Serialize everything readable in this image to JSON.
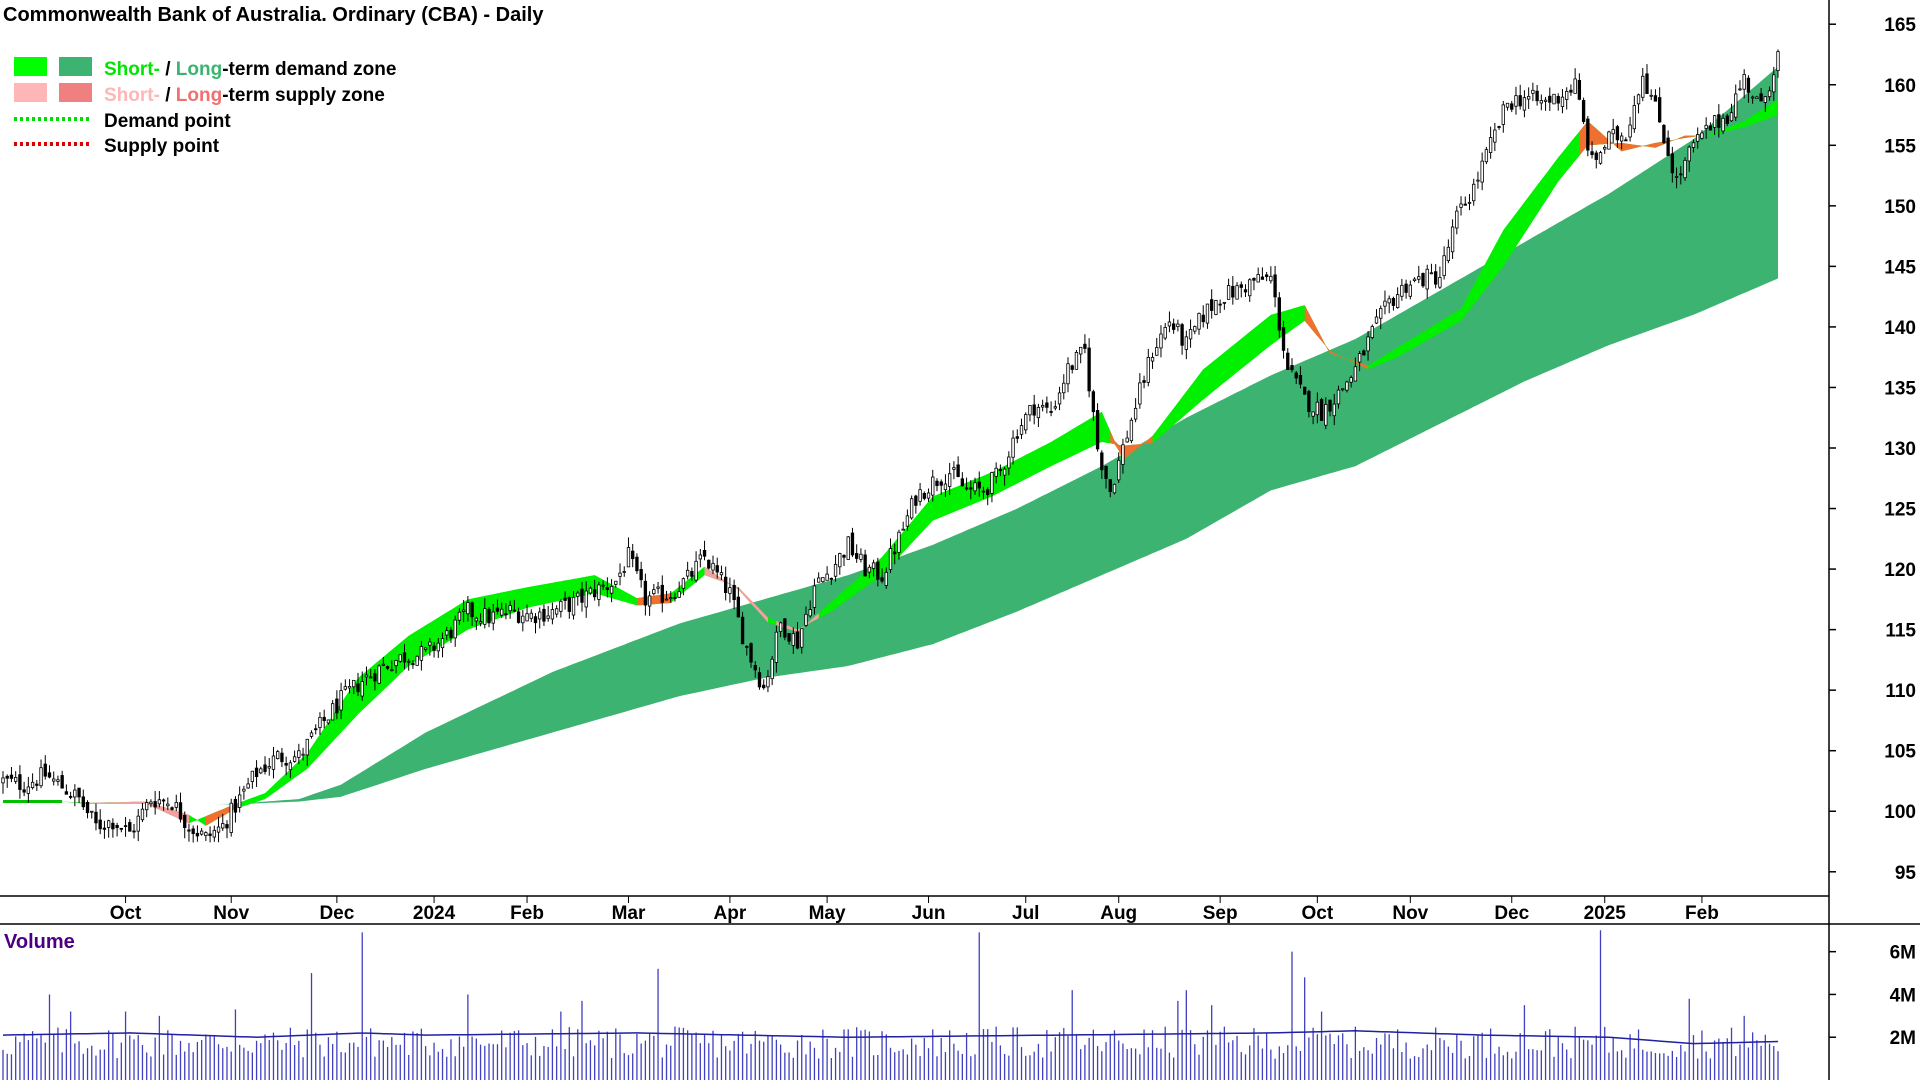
{
  "chart_data": {
    "type": "candlestick",
    "title": "Commonwealth Bank of Australia. Ordinary (CBA) - Daily",
    "legend": {
      "placement": "top-left",
      "items": [
        {
          "prefix": "Short-",
          "sep": " / ",
          "middle": "Long",
          "suffix": "-term demand zone",
          "colors": [
            "#00ff00",
            "#3cb371"
          ],
          "prefix_color": "#00e600",
          "middle_color": "#3cb371"
        },
        {
          "prefix": "Short-",
          "sep": " / ",
          "middle": "Long",
          "suffix": "-term supply zone",
          "colors": [
            "#ffb6b6",
            "#f08080"
          ],
          "prefix_color": "#ffb6b6",
          "middle_color": "#f07070"
        },
        {
          "label": "Demand point",
          "color": "#00dd00",
          "style": "dotted"
        },
        {
          "label": "Supply point",
          "color": "#dd0000",
          "style": "dotted"
        }
      ]
    },
    "price_axis": {
      "ylim": [
        93,
        167
      ],
      "ticks": [
        95,
        100,
        105,
        110,
        115,
        120,
        125,
        130,
        135,
        140,
        145,
        150,
        155,
        160,
        165
      ],
      "position": "right"
    },
    "x_axis": {
      "labels": [
        "Oct",
        "Nov",
        "Dec",
        "2024",
        "Feb",
        "Mar",
        "Apr",
        "May",
        "Jun",
        "Jul",
        "Aug",
        "Sep",
        "Oct",
        "Nov",
        "Dec",
        "2025",
        "Feb"
      ],
      "label_days": [
        29,
        54,
        79,
        102,
        124,
        148,
        172,
        195,
        219,
        242,
        264,
        288,
        311,
        333,
        357,
        379,
        402
      ]
    },
    "short_zone": [
      [
        0,
        100.8,
        100.8
      ],
      [
        14,
        100.8,
        100.8
      ],
      [
        20,
        100.7,
        100.6
      ],
      [
        34,
        100.8,
        100.6
      ],
      [
        44,
        99.7,
        99.0
      ],
      [
        48,
        98.8,
        99.6
      ],
      [
        55,
        100.2,
        100.6
      ],
      [
        62,
        101.0,
        101.5
      ],
      [
        72,
        103.5,
        104.8
      ],
      [
        84,
        108.0,
        111.0
      ],
      [
        96,
        112.0,
        114.5
      ],
      [
        110,
        115.0,
        117.5
      ],
      [
        124,
        116.8,
        118.5
      ],
      [
        140,
        118.0,
        119.5
      ],
      [
        150,
        117.0,
        117.6
      ],
      [
        158,
        117.2,
        118.0
      ],
      [
        166,
        119.5,
        120.2
      ],
      [
        174,
        118.5,
        118.3
      ],
      [
        181,
        116.0,
        115.6
      ],
      [
        188,
        115.0,
        114.8
      ],
      [
        196,
        116.5,
        117.3
      ],
      [
        208,
        119.5,
        121.0
      ],
      [
        220,
        124.0,
        126.0
      ],
      [
        234,
        126.0,
        128.0
      ],
      [
        248,
        128.5,
        130.5
      ],
      [
        260,
        130.5,
        133.0
      ],
      [
        265,
        130.2,
        129.0
      ],
      [
        272,
        130.4,
        131.0
      ],
      [
        284,
        134.0,
        136.5
      ],
      [
        300,
        138.5,
        141.0
      ],
      [
        308,
        140.5,
        141.8
      ],
      [
        314,
        138.0,
        137.8
      ],
      [
        323,
        136.5,
        136.8
      ],
      [
        330,
        137.5,
        138.3
      ],
      [
        345,
        140.5,
        141.5
      ],
      [
        355,
        145.0,
        148.0
      ],
      [
        368,
        152.0,
        154.0
      ],
      [
        375,
        155.0,
        157.0
      ],
      [
        383,
        155.2,
        154.5
      ],
      [
        391,
        154.8,
        155.2
      ],
      [
        398,
        155.8,
        155.6
      ],
      [
        404,
        155.8,
        155.9
      ],
      [
        412,
        156.5,
        157.0
      ],
      [
        420,
        157.5,
        158.8
      ]
    ],
    "long_zone": [
      [
        0,
        100.8,
        100.8
      ],
      [
        20,
        100.7,
        100.7
      ],
      [
        50,
        100.5,
        100.5
      ],
      [
        70,
        100.8,
        101.0
      ],
      [
        80,
        101.2,
        102.2
      ],
      [
        100,
        103.5,
        106.5
      ],
      [
        130,
        106.5,
        111.5
      ],
      [
        160,
        109.5,
        115.5
      ],
      [
        180,
        111.0,
        117.5
      ],
      [
        200,
        112.0,
        119.5
      ],
      [
        220,
        113.8,
        122.0
      ],
      [
        240,
        116.5,
        125.0
      ],
      [
        260,
        119.5,
        128.5
      ],
      [
        280,
        122.5,
        132.5
      ],
      [
        300,
        126.5,
        136.0
      ],
      [
        320,
        128.5,
        139.0
      ],
      [
        340,
        132.0,
        143.0
      ],
      [
        360,
        135.5,
        147.0
      ],
      [
        380,
        138.5,
        151.0
      ],
      [
        400,
        141.0,
        155.5
      ],
      [
        420,
        144.0,
        161.5
      ]
    ],
    "supply_segments": [
      [
        20,
        44
      ],
      [
        48,
        55
      ],
      [
        150,
        158
      ],
      [
        166,
        181
      ],
      [
        183,
        193
      ],
      [
        262,
        272
      ],
      [
        308,
        323
      ],
      [
        373,
        402
      ]
    ],
    "price_daily_close_approx": [
      [
        0,
        102.5
      ],
      [
        5,
        102.2
      ],
      [
        10,
        103.0
      ],
      [
        15,
        101.8
      ],
      [
        18,
        101.0
      ],
      [
        22,
        98.8
      ],
      [
        26,
        99.2
      ],
      [
        30,
        98.2
      ],
      [
        35,
        101.0
      ],
      [
        40,
        100.8
      ],
      [
        44,
        98.8
      ],
      [
        48,
        97.8
      ],
      [
        52,
        98.8
      ],
      [
        56,
        101.0
      ],
      [
        60,
        103.2
      ],
      [
        65,
        104.5
      ],
      [
        70,
        104.5
      ],
      [
        75,
        107.0
      ],
      [
        80,
        109.2
      ],
      [
        85,
        110.8
      ],
      [
        90,
        112.0
      ],
      [
        95,
        112.8
      ],
      [
        100,
        113.0
      ],
      [
        105,
        114.5
      ],
      [
        110,
        116.5
      ],
      [
        115,
        116.0
      ],
      [
        120,
        116.5
      ],
      [
        125,
        116.2
      ],
      [
        130,
        116.5
      ],
      [
        135,
        117.2
      ],
      [
        140,
        118.2
      ],
      [
        145,
        119.0
      ],
      [
        148,
        121.0
      ],
      [
        152,
        117.5
      ],
      [
        158,
        118.0
      ],
      [
        162,
        119.2
      ],
      [
        166,
        121.0
      ],
      [
        172,
        118.0
      ],
      [
        176,
        113.5
      ],
      [
        180,
        110.2
      ],
      [
        184,
        115.5
      ],
      [
        188,
        114.0
      ],
      [
        192,
        118.5
      ],
      [
        196,
        120.0
      ],
      [
        200,
        122.0
      ],
      [
        204,
        120.0
      ],
      [
        208,
        119.5
      ],
      [
        212,
        122.5
      ],
      [
        216,
        126.0
      ],
      [
        220,
        127.2
      ],
      [
        224,
        128.0
      ],
      [
        228,
        126.5
      ],
      [
        232,
        126.5
      ],
      [
        236,
        128.0
      ],
      [
        240,
        131.5
      ],
      [
        244,
        133.5
      ],
      [
        248,
        133.0
      ],
      [
        252,
        136.5
      ],
      [
        256,
        138.0
      ],
      [
        259,
        130.0
      ],
      [
        262,
        126.5
      ],
      [
        265,
        130.0
      ],
      [
        268,
        133.5
      ],
      [
        272,
        138.0
      ],
      [
        276,
        140.5
      ],
      [
        280,
        138.5
      ],
      [
        284,
        141.0
      ],
      [
        288,
        142.5
      ],
      [
        292,
        143.0
      ],
      [
        296,
        143.8
      ],
      [
        300,
        144.0
      ],
      [
        304,
        136.5
      ],
      [
        308,
        134.0
      ],
      [
        312,
        133.0
      ],
      [
        316,
        134.5
      ],
      [
        320,
        136.5
      ],
      [
        324,
        139.5
      ],
      [
        328,
        142.0
      ],
      [
        332,
        143.5
      ],
      [
        336,
        144.0
      ],
      [
        340,
        144.2
      ],
      [
        344,
        149.0
      ],
      [
        348,
        151.5
      ],
      [
        352,
        155.0
      ],
      [
        356,
        158.5
      ],
      [
        360,
        159.0
      ],
      [
        364,
        158.5
      ],
      [
        368,
        159.0
      ],
      [
        372,
        160.0
      ],
      [
        376,
        153.5
      ],
      [
        380,
        155.5
      ],
      [
        384,
        156.0
      ],
      [
        388,
        161.0
      ],
      [
        392,
        157.0
      ],
      [
        396,
        152.0
      ],
      [
        400,
        155.0
      ],
      [
        404,
        156.5
      ],
      [
        408,
        157.5
      ],
      [
        412,
        160.5
      ],
      [
        416,
        158.0
      ],
      [
        420,
        162.5
      ]
    ],
    "volume": {
      "title": "Volume",
      "ticks": [
        {
          "value": 2000000,
          "label": "2M"
        },
        {
          "value": 4000000,
          "label": "4M"
        },
        {
          "value": 6000000,
          "label": "6M"
        }
      ],
      "ylim": [
        0,
        7200000
      ],
      "spikes": [
        [
          11,
          4.0
        ],
        [
          16,
          3.2
        ],
        [
          29,
          3.2
        ],
        [
          37,
          3.0
        ],
        [
          55,
          3.3
        ],
        [
          73,
          5.0
        ],
        [
          85,
          6.9
        ],
        [
          110,
          4.0
        ],
        [
          132,
          3.2
        ],
        [
          137,
          3.7
        ],
        [
          155,
          5.2
        ],
        [
          231,
          6.9
        ],
        [
          253,
          4.2
        ],
        [
          278,
          3.7
        ],
        [
          280,
          4.2
        ],
        [
          286,
          3.5
        ],
        [
          305,
          6.0
        ],
        [
          308,
          4.8
        ],
        [
          312,
          3.2
        ],
        [
          360,
          3.5
        ],
        [
          378,
          7.0
        ],
        [
          399,
          3.8
        ],
        [
          412,
          3.0
        ]
      ],
      "average": [
        [
          0,
          2.1
        ],
        [
          30,
          2.2
        ],
        [
          60,
          2.0
        ],
        [
          85,
          2.2
        ],
        [
          100,
          2.1
        ],
        [
          150,
          2.2
        ],
        [
          200,
          2.0
        ],
        [
          250,
          2.1
        ],
        [
          300,
          2.2
        ],
        [
          320,
          2.3
        ],
        [
          350,
          2.1
        ],
        [
          380,
          2.0
        ],
        [
          400,
          1.7
        ],
        [
          420,
          1.8
        ]
      ]
    },
    "grid": false
  }
}
